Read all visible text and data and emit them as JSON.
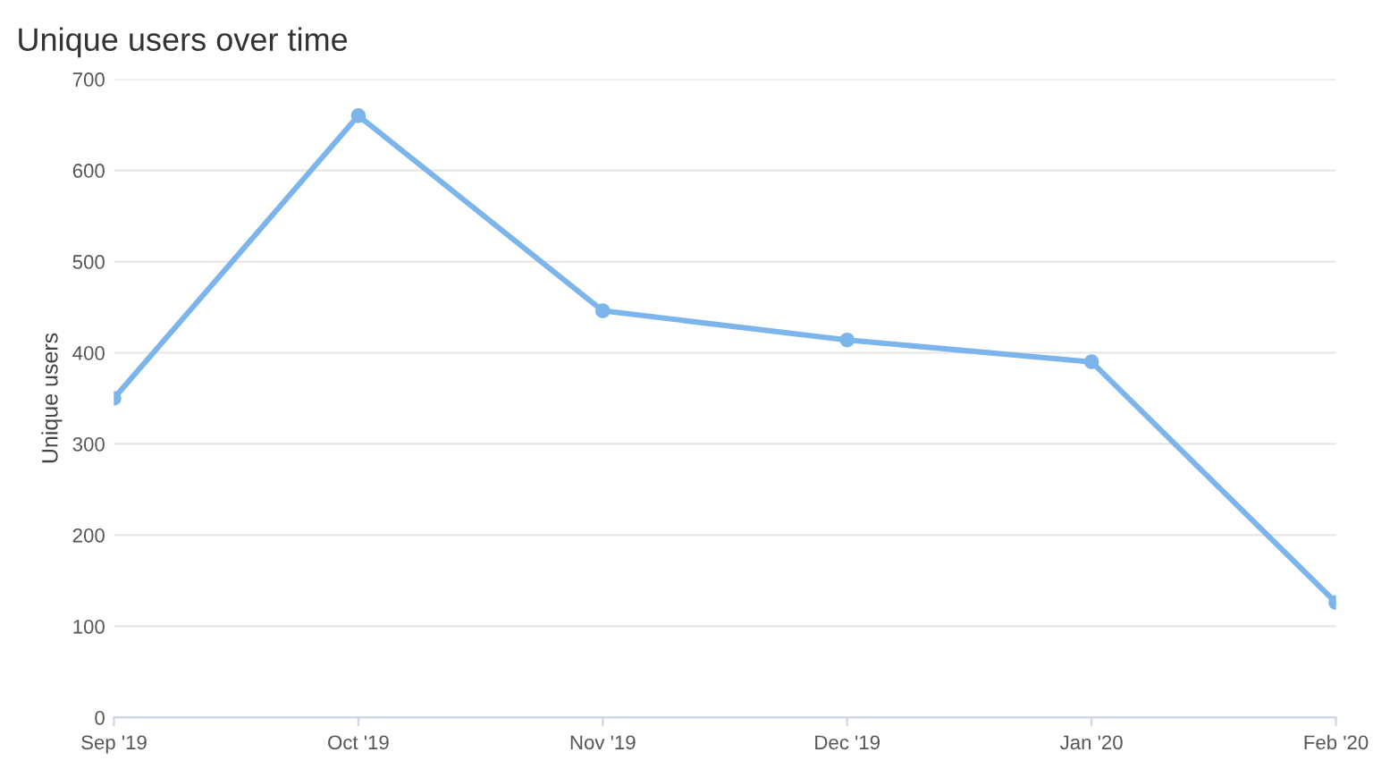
{
  "chart_data": {
    "type": "line",
    "title": "Unique users over time",
    "ylabel": "Unique users",
    "categories": [
      "Sep '19",
      "Oct '19",
      "Nov '19",
      "Dec '19",
      "Jan '20",
      "Feb '20"
    ],
    "series": [
      {
        "color": "#7cb5ec",
        "values": [
          350,
          660,
          446,
          414,
          390,
          126
        ]
      }
    ],
    "ylim": [
      0,
      700
    ],
    "yticks": [
      0,
      100,
      200,
      300,
      400,
      500,
      600,
      700
    ],
    "grid": "y",
    "marker": "circle",
    "line_style": "solid"
  }
}
